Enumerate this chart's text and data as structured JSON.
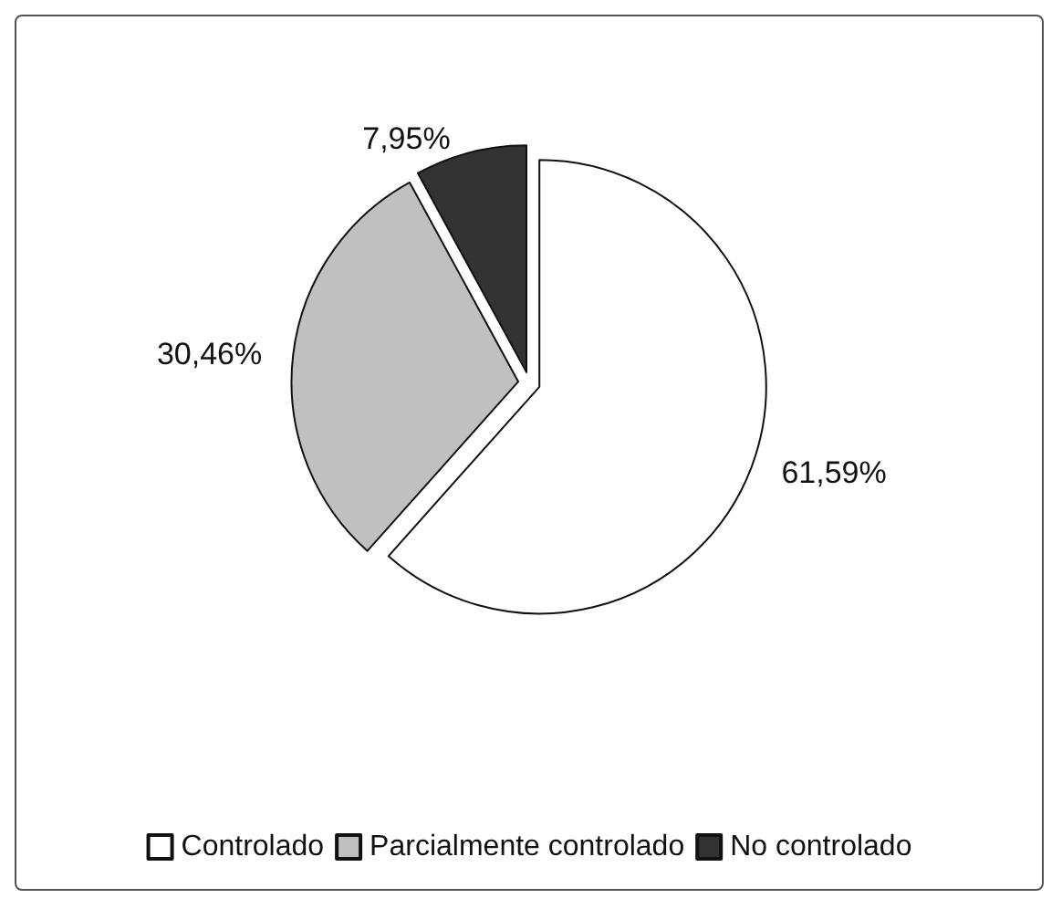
{
  "chart_data": {
    "type": "pie",
    "categories": [
      "Controlado",
      "Parcialmente controlado",
      "No controlado"
    ],
    "values": [
      61.59,
      30.46,
      7.95
    ],
    "colors": [
      "#ffffff",
      "#c0c0c0",
      "#333333"
    ],
    "value_labels": [
      "61,59%",
      "30,46%",
      "7,95%"
    ],
    "legend": "bottom"
  }
}
